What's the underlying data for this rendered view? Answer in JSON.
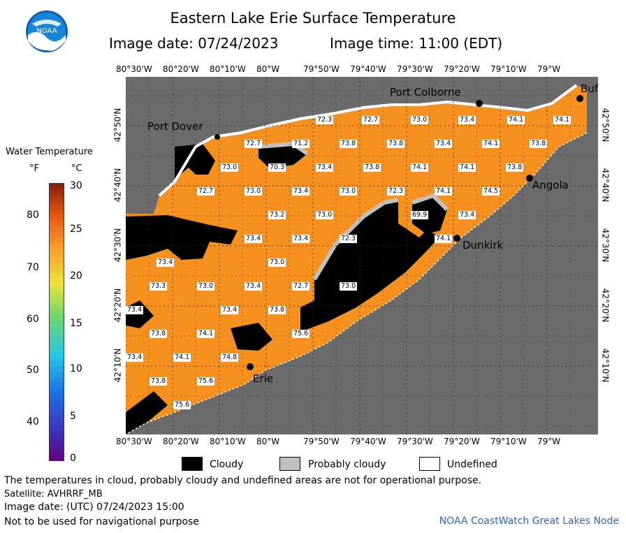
{
  "header": {
    "title": "Eastern Lake Erie Surface Temperature",
    "image_date": "Image date: 07/24/2023",
    "image_time": "Image time: 11:00 (EDT)",
    "logo_text": "NOAA"
  },
  "axes": {
    "lon_top": [
      "80°30'W",
      "80°20'W",
      "80°10'W",
      "80°W",
      "79°50'W",
      "79°40'W",
      "79°30'W",
      "79°20'W",
      "79°10'W",
      "79°W"
    ],
    "lon_bottom": [
      "80°30'W",
      "80°20'W",
      "80°10'W",
      "80°W",
      "79°50'W",
      "79°40'W",
      "79°30'W",
      "79°20'W",
      "79°10'W",
      "79°W"
    ],
    "lat_left": [
      "42°50'N",
      "42°40'N",
      "42°30'N",
      "42°20'N",
      "42°10'N"
    ],
    "lat_right": [
      "42°50'N",
      "42°40'N",
      "42°30'N",
      "42°20'N",
      "42°10'N"
    ]
  },
  "places": {
    "port_colborne": "Port Colborne",
    "port_dover": "Port Dover",
    "buffalo": "Buf",
    "angola": "Angola",
    "dunkirk": "Dunkirk",
    "erie": "Erie"
  },
  "temps": [
    {
      "v": "72.3"
    },
    {
      "v": "72.7"
    },
    {
      "v": "73.0"
    },
    {
      "v": "73.4"
    },
    {
      "v": "74.1"
    },
    {
      "v": "74.1"
    },
    {
      "v": "72.7"
    },
    {
      "v": "71.2"
    },
    {
      "v": "73.8"
    },
    {
      "v": "73.8"
    },
    {
      "v": "73.4"
    },
    {
      "v": "74.1"
    },
    {
      "v": "73.8"
    },
    {
      "v": "73.0"
    },
    {
      "v": "70.3"
    },
    {
      "v": "73.4"
    },
    {
      "v": "73.8"
    },
    {
      "v": "74.1"
    },
    {
      "v": "74.1"
    },
    {
      "v": "73.8"
    },
    {
      "v": "72.7"
    },
    {
      "v": "73.0"
    },
    {
      "v": "73.4"
    },
    {
      "v": "73.0"
    },
    {
      "v": "72.3"
    },
    {
      "v": "74.1"
    },
    {
      "v": "74.5"
    },
    {
      "v": "73.2"
    },
    {
      "v": "73.0"
    },
    {
      "v": "69.9"
    },
    {
      "v": "73.4"
    },
    {
      "v": "73.4"
    },
    {
      "v": "73.4"
    },
    {
      "v": "72.3"
    },
    {
      "v": "74.1"
    },
    {
      "v": "73.4"
    },
    {
      "v": "73.0"
    },
    {
      "v": "73.3"
    },
    {
      "v": "73.0"
    },
    {
      "v": "73.4"
    },
    {
      "v": "72.7"
    },
    {
      "v": "73.0"
    },
    {
      "v": "73.4"
    },
    {
      "v": "73.4"
    },
    {
      "v": "73.8"
    },
    {
      "v": "73.8"
    },
    {
      "v": "74.1"
    },
    {
      "v": "75.6"
    },
    {
      "v": "73.4"
    },
    {
      "v": "74.1"
    },
    {
      "v": "74.8"
    },
    {
      "v": "73.8"
    },
    {
      "v": "75.6"
    },
    {
      "v": "75.6"
    }
  ],
  "colorbar": {
    "title": "Water Temperature",
    "unit_f": "°F",
    "unit_c": "°C",
    "f_ticks": [
      "80",
      "70",
      "60",
      "50",
      "40"
    ],
    "c_ticks": [
      "30",
      "25",
      "20",
      "15",
      "10",
      "5",
      "0"
    ],
    "colors": [
      "#6a0080",
      "#1d6fe8",
      "#25c6e8",
      "#6cd86c",
      "#ede13c",
      "#f7a12b",
      "#e85a12",
      "#8a1e0a"
    ]
  },
  "legend": {
    "cloudy": "Cloudy",
    "probably_cloudy": "Probably cloudy",
    "undefined": "Undefined",
    "cloudy_color": "#000000",
    "probably_color": "#c0c0c0",
    "undefined_color": "#ffffff"
  },
  "notes": {
    "disclaimer": "The temperatures in cloud, probably cloudy and undefined areas are not for operational purpose.",
    "satellite": "Satellite: AVHRRF_MB",
    "utc_date": "Image date: (UTC) 07/24/2023  15:00",
    "nav": "Not to be used for navigational purpose",
    "credit": "NOAA CoastWatch Great Lakes Node"
  },
  "map_colors": {
    "land": "#6b6b6b",
    "water": "#f6901e",
    "cloud": "#000000",
    "grid": "#333333"
  }
}
